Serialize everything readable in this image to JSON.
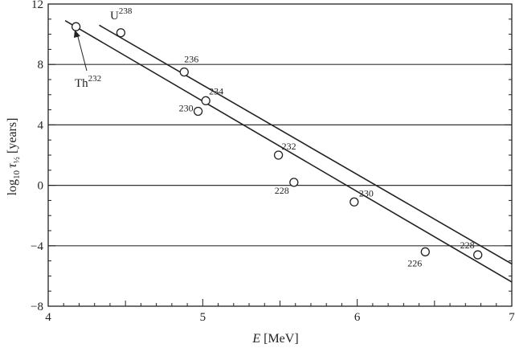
{
  "chart_data": {
    "type": "line",
    "xlabel": {
      "var": "E",
      "unit": " [MeV]"
    },
    "ylabel": {
      "base": "log",
      "sub": "10",
      "tau": "τ",
      "tausub": "½",
      "unit": " [years]"
    },
    "xlim": [
      4,
      7
    ],
    "ylim": [
      -8,
      12
    ],
    "x_ticks": [
      4,
      5,
      6,
      7
    ],
    "x_tick_labels": [
      "4",
      "5",
      "6",
      "7"
    ],
    "y_ticks": [
      -8,
      -4,
      0,
      4,
      8,
      12
    ],
    "y_tick_labels": [
      "−8",
      "−4",
      "0",
      "4",
      "8",
      "12"
    ],
    "grid_y": [
      -4,
      0,
      4,
      8
    ],
    "series": [
      {
        "name": "U",
        "mass": "238",
        "line": [
          [
            4.33,
            10.6
          ],
          [
            7.0,
            -5.2
          ]
        ],
        "points": [
          {
            "x": 4.47,
            "y": 10.1,
            "label": ""
          },
          {
            "x": 4.88,
            "y": 7.5,
            "label": "236"
          },
          {
            "x": 5.02,
            "y": 5.6,
            "label": "234"
          },
          {
            "x": 5.49,
            "y": 2.0,
            "label": "232"
          },
          {
            "x": 5.98,
            "y": -1.1,
            "label": "230"
          },
          {
            "x": 6.78,
            "y": -4.6,
            "label": "228"
          }
        ]
      },
      {
        "name": "Th",
        "mass": "232",
        "line": [
          [
            4.11,
            10.9
          ],
          [
            7.0,
            -6.4
          ]
        ],
        "points": [
          {
            "x": 4.18,
            "y": 10.5,
            "label": ""
          },
          {
            "x": 4.97,
            "y": 4.9,
            "label": "230"
          },
          {
            "x": 5.59,
            "y": 0.2,
            "label": "228"
          },
          {
            "x": 6.44,
            "y": -4.4,
            "label": "226"
          }
        ]
      }
    ]
  }
}
